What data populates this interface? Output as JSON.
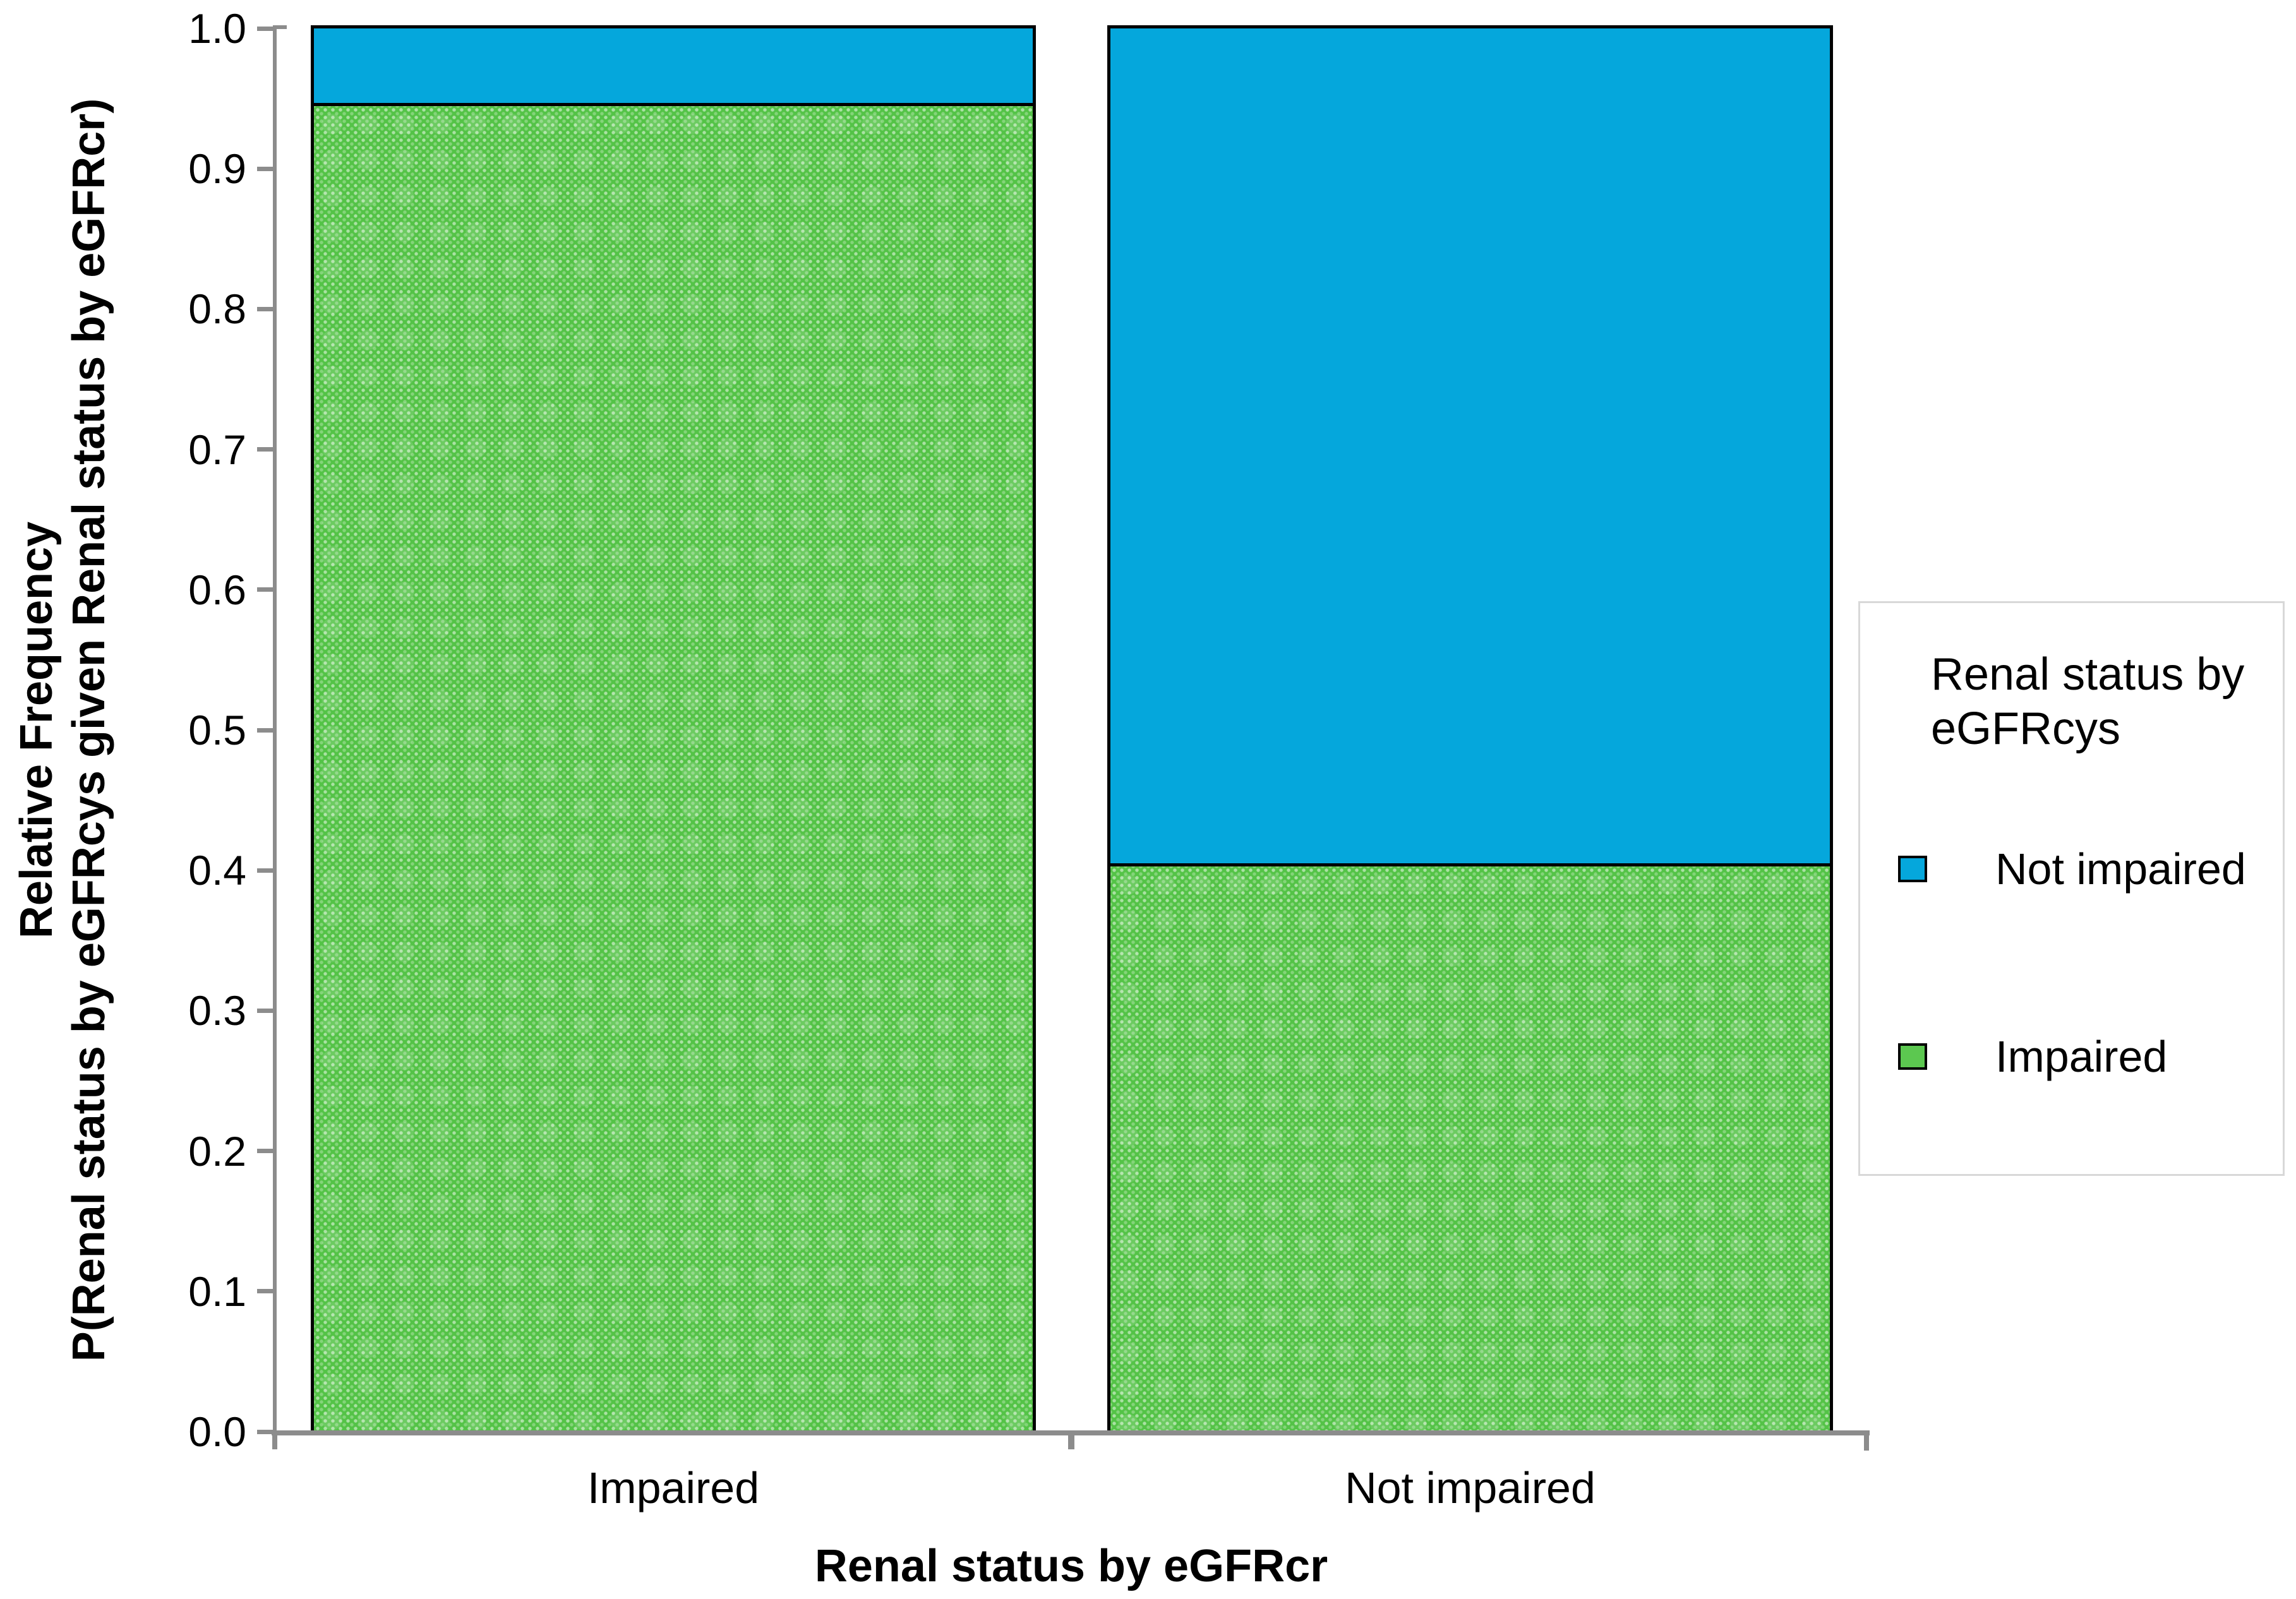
{
  "colors": {
    "not_impaired_blue": "#05a7dc",
    "impaired_green": "#54c347",
    "axis_gray": "#8c8c8c",
    "legend_border_gray": "#d8d8d8",
    "bar_outline": "#000000",
    "background": "#ffffff"
  },
  "y_axis": {
    "title_line1": "Relative Frequency",
    "title_line2": "P(Renal status by eGFRcys given Renal status by eGFRcr)",
    "tick_labels": [
      "1.0",
      "0.9",
      "0.8",
      "0.7",
      "0.6",
      "0.5",
      "0.4",
      "0.3",
      "0.2",
      "0.1",
      "0.0"
    ]
  },
  "x_axis": {
    "title": "Renal status by eGFRcr",
    "categories": [
      "Impaired",
      "Not impaired"
    ]
  },
  "legend": {
    "title_line1": "Renal status by",
    "title_line2": "eGFRcys",
    "entries": [
      {
        "label": "Not impaired",
        "color": "#05a7dc",
        "patterned": false
      },
      {
        "label": "Impaired",
        "color": "#5cc850",
        "patterned": true
      }
    ]
  },
  "chart_data": {
    "type": "bar",
    "subtype": "stacked-100pct",
    "title": "",
    "xlabel": "Renal status by eGFRcr",
    "ylabel": "Relative Frequency P(Renal status by eGFRcys given Renal status by eGFRcr)",
    "categories": [
      "Impaired",
      "Not impaired"
    ],
    "series": [
      {
        "name": "Impaired",
        "color": "#54c347",
        "pattern": "dotted",
        "values": [
          0.947,
          0.405
        ]
      },
      {
        "name": "Not impaired",
        "color": "#05a7dc",
        "pattern": "solid",
        "values": [
          0.053,
          0.595
        ]
      }
    ],
    "ylim": [
      0.0,
      1.0
    ],
    "y_tick_step": 0.1,
    "grid": "off",
    "legend_title": "Renal status by eGFRcys",
    "legend_position": "right",
    "legend_entries": [
      "Not impaired",
      "Impaired"
    ]
  }
}
